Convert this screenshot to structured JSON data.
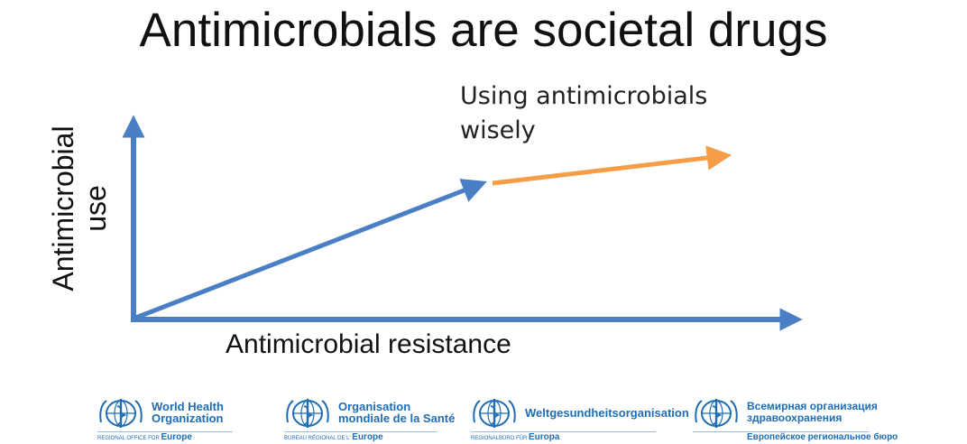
{
  "title": "Antimicrobials are societal drugs",
  "annotation": [
    "Using antimicrobials",
    "wisely"
  ],
  "y_axis_label": [
    "Antimicrobial",
    "use"
  ],
  "x_axis_label": "Antimicrobial resistance",
  "colors": {
    "axis": "#4a7fc5",
    "growth_arrow": "#4a7fc5",
    "wise_arrow": "#f59e47",
    "logo": "#1f6db4"
  },
  "logos": [
    {
      "org_lines": [
        "World Health",
        "Organization"
      ],
      "region_prefix": "REGIONAL OFFICE FOR",
      "region": "Europe",
      "icon": "who-emblem-icon"
    },
    {
      "org_lines": [
        "Organisation",
        "mondiale de la Santé"
      ],
      "region_prefix": "BUREAU RÉGIONAL DE L'",
      "region": "Europe",
      "icon": "who-emblem-icon"
    },
    {
      "org_lines": [
        "Weltgesundheitsorganisation"
      ],
      "region_prefix": "REGIONALBÜRO FÜR",
      "region": "Europa",
      "icon": "who-emblem-icon"
    },
    {
      "org_lines": [
        "Всемирная организация",
        "здравоохранения"
      ],
      "region_prefix": "",
      "region": "Европейское региональное бюро",
      "icon": "who-emblem-icon"
    }
  ]
}
